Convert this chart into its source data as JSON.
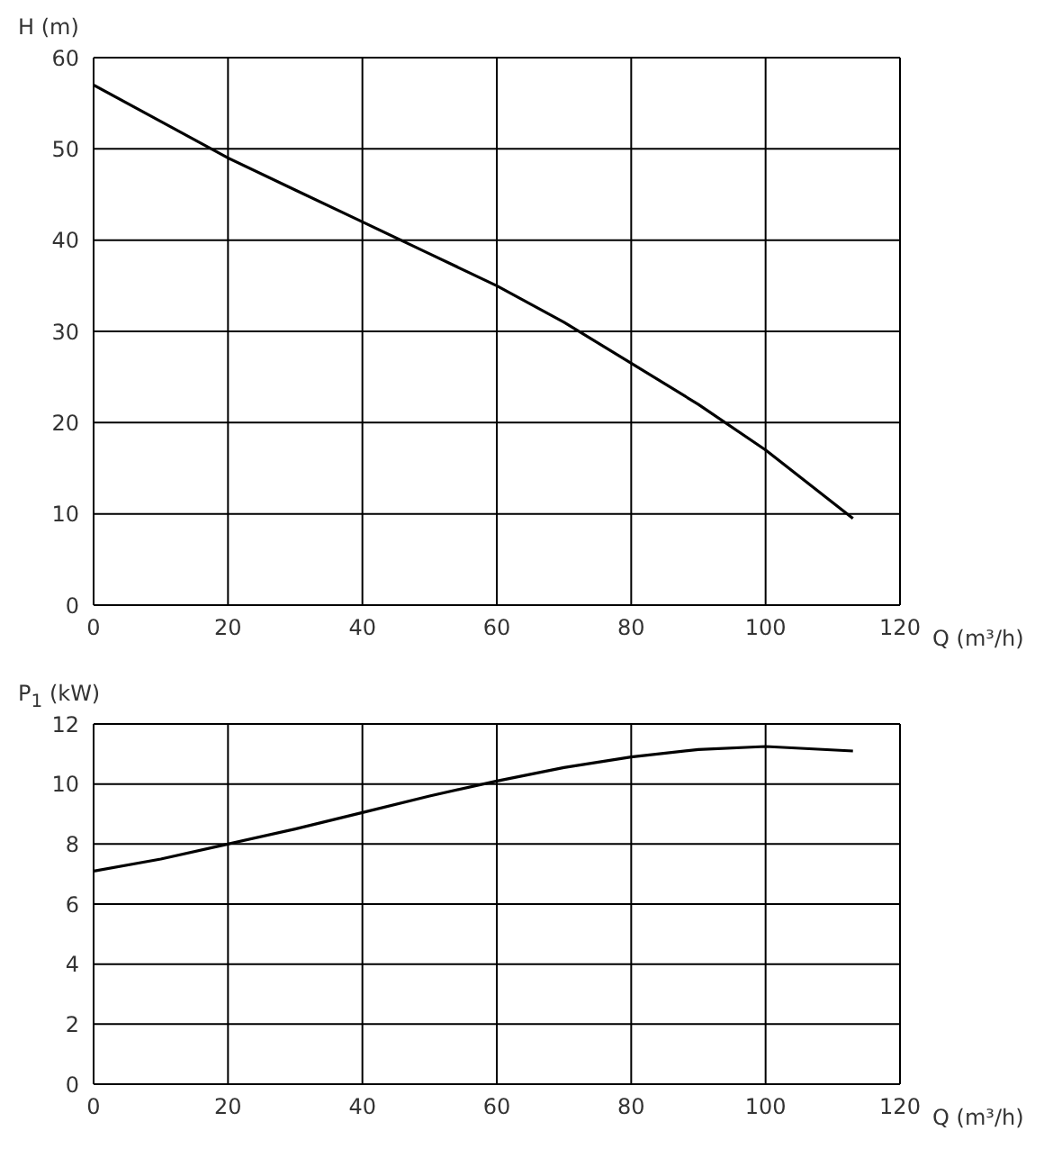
{
  "chart_data": [
    {
      "type": "line",
      "ylabel": "H (m)",
      "xlabel": "Q (m³/h)",
      "x": [
        0,
        10,
        20,
        30,
        40,
        50,
        60,
        70,
        80,
        90,
        100,
        113
      ],
      "series": [
        {
          "color": "#000000",
          "values": [
            57,
            53,
            49,
            45.5,
            42,
            38.5,
            35,
            31,
            26.5,
            22,
            17,
            9.5
          ]
        }
      ],
      "xlim": [
        0,
        120
      ],
      "xticks": [
        0,
        20,
        40,
        60,
        80,
        100,
        120
      ],
      "ylim": [
        0,
        60
      ],
      "yticks": [
        0,
        10,
        20,
        30,
        40,
        50,
        60
      ],
      "grid": true,
      "marker": "none",
      "line_style": "solid"
    },
    {
      "type": "line",
      "ylabel": "P$_{1}$ (kW)",
      "xlabel": "Q (m³/h)",
      "x": [
        0,
        10,
        20,
        30,
        40,
        50,
        60,
        70,
        80,
        90,
        100,
        113
      ],
      "series": [
        {
          "color": "#000000",
          "values": [
            7.1,
            7.5,
            8,
            8.5,
            9.05,
            9.6,
            10.1,
            10.55,
            10.9,
            11.15,
            11.25,
            11.1
          ]
        }
      ],
      "xlim": [
        0,
        120
      ],
      "xticks": [
        0,
        20,
        40,
        60,
        80,
        100,
        120
      ],
      "ylim": [
        0,
        12
      ],
      "yticks": [
        0,
        2,
        4,
        6,
        8,
        10,
        12
      ],
      "grid": true,
      "marker": "none",
      "line_style": "solid"
    }
  ]
}
